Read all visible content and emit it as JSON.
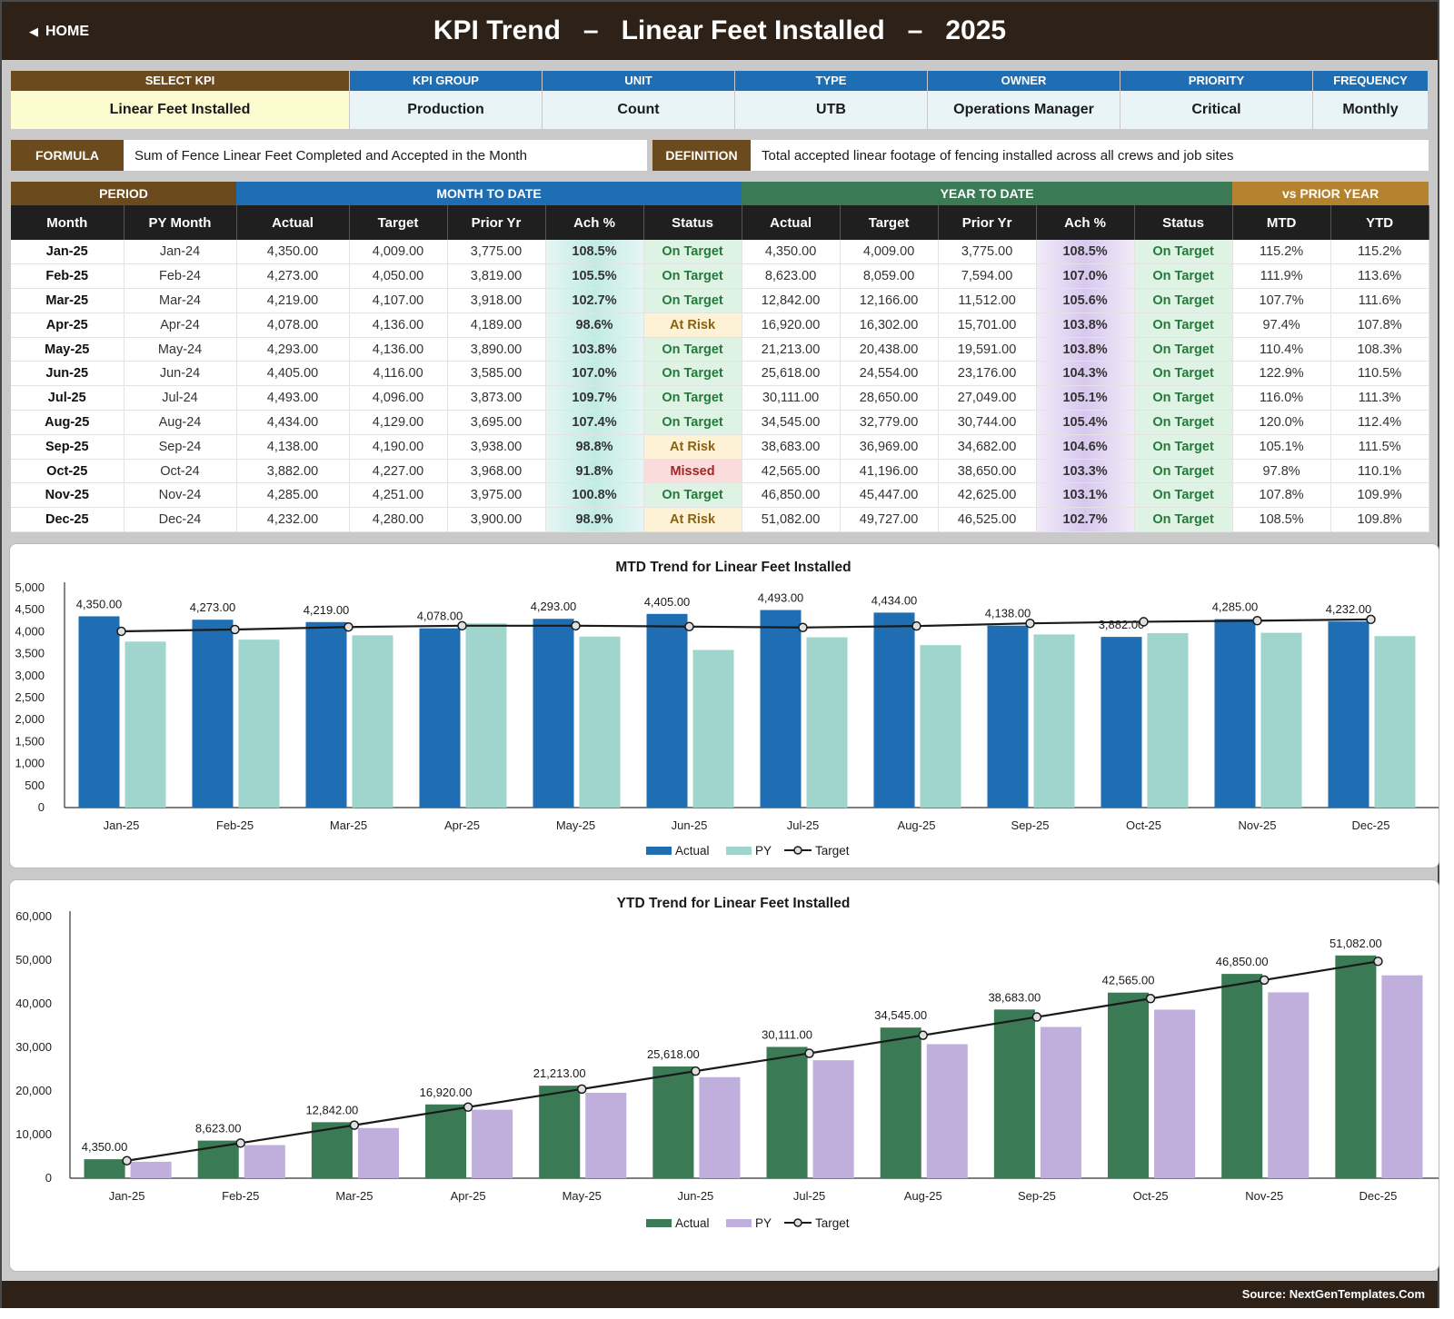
{
  "header": {
    "home_label": "HOME",
    "title": "KPI Trend   –   Linear Feet Installed   –   2025"
  },
  "info": [
    {
      "label": "SELECT KPI",
      "value": "Linear Feet Installed"
    },
    {
      "label": "KPI GROUP",
      "value": "Production"
    },
    {
      "label": "UNIT",
      "value": "Count"
    },
    {
      "label": "TYPE",
      "value": "UTB"
    },
    {
      "label": "OWNER",
      "value": "Operations Manager"
    },
    {
      "label": "PRIORITY",
      "value": "Critical"
    },
    {
      "label": "FREQUENCY",
      "value": "Monthly"
    }
  ],
  "formula": {
    "label": "FORMULA",
    "text": "Sum of Fence Linear Feet Completed and Accepted in the Month"
  },
  "definition": {
    "label": "DEFINITION",
    "text": "Total accepted linear footage of fencing installed across all crews and job sites"
  },
  "table": {
    "groups": {
      "period": "PERIOD",
      "mtd": "MONTH TO DATE",
      "ytd": "YEAR TO DATE",
      "vs": "vs PRIOR YEAR"
    },
    "columns": [
      "Month",
      "PY Month",
      "Actual",
      "Target",
      "Prior Yr",
      "Ach %",
      "Status",
      "Actual",
      "Target",
      "Prior Yr",
      "Ach %",
      "Status",
      "MTD",
      "YTD"
    ],
    "rows": [
      [
        "Jan-25",
        "Jan-24",
        "4,350.00",
        "4,009.00",
        "3,775.00",
        "108.5%",
        "On Target",
        "4,350.00",
        "4,009.00",
        "3,775.00",
        "108.5%",
        "On Target",
        "115.2%",
        "115.2%"
      ],
      [
        "Feb-25",
        "Feb-24",
        "4,273.00",
        "4,050.00",
        "3,819.00",
        "105.5%",
        "On Target",
        "8,623.00",
        "8,059.00",
        "7,594.00",
        "107.0%",
        "On Target",
        "111.9%",
        "113.6%"
      ],
      [
        "Mar-25",
        "Mar-24",
        "4,219.00",
        "4,107.00",
        "3,918.00",
        "102.7%",
        "On Target",
        "12,842.00",
        "12,166.00",
        "11,512.00",
        "105.6%",
        "On Target",
        "107.7%",
        "111.6%"
      ],
      [
        "Apr-25",
        "Apr-24",
        "4,078.00",
        "4,136.00",
        "4,189.00",
        "98.6%",
        "At Risk",
        "16,920.00",
        "16,302.00",
        "15,701.00",
        "103.8%",
        "On Target",
        "97.4%",
        "107.8%"
      ],
      [
        "May-25",
        "May-24",
        "4,293.00",
        "4,136.00",
        "3,890.00",
        "103.8%",
        "On Target",
        "21,213.00",
        "20,438.00",
        "19,591.00",
        "103.8%",
        "On Target",
        "110.4%",
        "108.3%"
      ],
      [
        "Jun-25",
        "Jun-24",
        "4,405.00",
        "4,116.00",
        "3,585.00",
        "107.0%",
        "On Target",
        "25,618.00",
        "24,554.00",
        "23,176.00",
        "104.3%",
        "On Target",
        "122.9%",
        "110.5%"
      ],
      [
        "Jul-25",
        "Jul-24",
        "4,493.00",
        "4,096.00",
        "3,873.00",
        "109.7%",
        "On Target",
        "30,111.00",
        "28,650.00",
        "27,049.00",
        "105.1%",
        "On Target",
        "116.0%",
        "111.3%"
      ],
      [
        "Aug-25",
        "Aug-24",
        "4,434.00",
        "4,129.00",
        "3,695.00",
        "107.4%",
        "On Target",
        "34,545.00",
        "32,779.00",
        "30,744.00",
        "105.4%",
        "On Target",
        "120.0%",
        "112.4%"
      ],
      [
        "Sep-25",
        "Sep-24",
        "4,138.00",
        "4,190.00",
        "3,938.00",
        "98.8%",
        "At Risk",
        "38,683.00",
        "36,969.00",
        "34,682.00",
        "104.6%",
        "On Target",
        "105.1%",
        "111.5%"
      ],
      [
        "Oct-25",
        "Oct-24",
        "3,882.00",
        "4,227.00",
        "3,968.00",
        "91.8%",
        "Missed",
        "42,565.00",
        "41,196.00",
        "38,650.00",
        "103.3%",
        "On Target",
        "97.8%",
        "110.1%"
      ],
      [
        "Nov-25",
        "Nov-24",
        "4,285.00",
        "4,251.00",
        "3,975.00",
        "100.8%",
        "On Target",
        "46,850.00",
        "45,447.00",
        "42,625.00",
        "103.1%",
        "On Target",
        "107.8%",
        "109.9%"
      ],
      [
        "Dec-25",
        "Dec-24",
        "4,232.00",
        "4,280.00",
        "3,900.00",
        "98.9%",
        "At Risk",
        "51,082.00",
        "49,727.00",
        "46,525.00",
        "102.7%",
        "On Target",
        "108.5%",
        "109.8%"
      ]
    ]
  },
  "chart_data": [
    {
      "type": "bar",
      "title": "MTD Trend for Linear Feet Installed",
      "categories": [
        "Jan-25",
        "Feb-25",
        "Mar-25",
        "Apr-25",
        "May-25",
        "Jun-25",
        "Jul-25",
        "Aug-25",
        "Sep-25",
        "Oct-25",
        "Nov-25",
        "Dec-25"
      ],
      "series": [
        {
          "name": "Actual",
          "kind": "bar",
          "color": "#1f6eb3",
          "values": [
            4350,
            4273,
            4219,
            4078,
            4293,
            4405,
            4493,
            4434,
            4138,
            3882,
            4285,
            4232
          ]
        },
        {
          "name": "PY",
          "kind": "bar",
          "color": "#9fd5cc",
          "values": [
            3775,
            3819,
            3918,
            4189,
            3890,
            3585,
            3873,
            3695,
            3938,
            3968,
            3975,
            3900
          ]
        },
        {
          "name": "Target",
          "kind": "line",
          "color": "#1a1a1a",
          "values": [
            4009,
            4050,
            4107,
            4136,
            4136,
            4116,
            4096,
            4129,
            4190,
            4227,
            4251,
            4280
          ]
        }
      ],
      "data_labels": [
        "4,350.00",
        "4,273.00",
        "4,219.00",
        "4,078.00",
        "4,293.00",
        "4,405.00",
        "4,493.00",
        "4,434.00",
        "4,138.00",
        "3,882.00",
        "4,285.00",
        "4,232.00"
      ],
      "y_ticks": [
        "0",
        "500",
        "1,000",
        "1,500",
        "2,000",
        "2,500",
        "3,000",
        "3,500",
        "4,000",
        "4,500",
        "5,000"
      ],
      "ylim": [
        0,
        5000
      ],
      "legend": "bottom"
    },
    {
      "type": "bar",
      "title": "YTD Trend for Linear Feet Installed",
      "categories": [
        "Jan-25",
        "Feb-25",
        "Mar-25",
        "Apr-25",
        "May-25",
        "Jun-25",
        "Jul-25",
        "Aug-25",
        "Sep-25",
        "Oct-25",
        "Nov-25",
        "Dec-25"
      ],
      "series": [
        {
          "name": "Actual",
          "kind": "bar",
          "color": "#3a7a55",
          "values": [
            4350,
            8623,
            12842,
            16920,
            21213,
            25618,
            30111,
            34545,
            38683,
            42565,
            46850,
            51082
          ]
        },
        {
          "name": "PY",
          "kind": "bar",
          "color": "#c0aedc",
          "values": [
            3775,
            7594,
            11512,
            15701,
            19591,
            23176,
            27049,
            30744,
            34682,
            38650,
            42625,
            46525
          ]
        },
        {
          "name": "Target",
          "kind": "line",
          "color": "#1a1a1a",
          "values": [
            4009,
            8059,
            12166,
            16302,
            20438,
            24554,
            28650,
            32779,
            36969,
            41196,
            45447,
            49727
          ]
        }
      ],
      "data_labels": [
        "4,350.00",
        "8,623.00",
        "12,842.00",
        "16,920.00",
        "21,213.00",
        "25,618.00",
        "30,111.00",
        "34,545.00",
        "38,683.00",
        "42,565.00",
        "46,850.00",
        "51,082.00"
      ],
      "y_ticks": [
        "0",
        "10,000",
        "20,000",
        "30,000",
        "40,000",
        "50,000",
        "60,000"
      ],
      "ylim": [
        0,
        60000
      ],
      "legend": "bottom"
    }
  ],
  "footer": {
    "source": "Source: NextGenTemplates.Com"
  }
}
